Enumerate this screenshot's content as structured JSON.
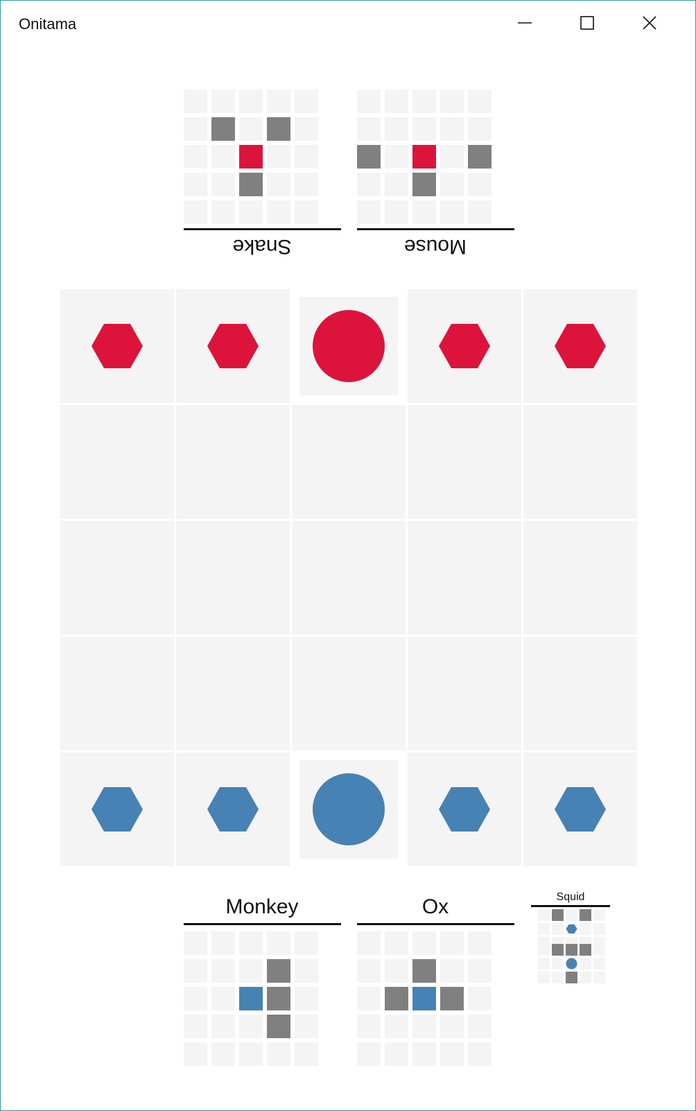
{
  "window": {
    "title": "Onitama",
    "controls": [
      "minimize-icon",
      "maximize-icon",
      "close-icon"
    ]
  },
  "colors": {
    "red": "#dc143c",
    "blue": "#4682b4",
    "move": "#808080",
    "empty": "#f4f4f4"
  },
  "opponent_cards": [
    {
      "name": "Snake",
      "moves": [
        [
          1,
          1
        ],
        [
          1,
          3
        ],
        [
          3,
          2
        ]
      ],
      "origin": [
        2,
        2
      ],
      "origin_color": "red"
    },
    {
      "name": "Mouse",
      "moves": [
        [
          2,
          0
        ],
        [
          2,
          4
        ],
        [
          3,
          2
        ]
      ],
      "origin": [
        2,
        2
      ],
      "origin_color": "red"
    }
  ],
  "player_cards": [
    {
      "name": "Monkey",
      "moves": [
        [
          1,
          3
        ],
        [
          2,
          3
        ],
        [
          3,
          3
        ]
      ],
      "origin": [
        2,
        2
      ],
      "origin_color": "blue"
    },
    {
      "name": "Ox",
      "moves": [
        [
          1,
          2
        ],
        [
          2,
          1
        ],
        [
          2,
          3
        ]
      ],
      "origin": [
        2,
        2
      ],
      "origin_color": "blue"
    }
  ],
  "next_card": {
    "name": "Squid",
    "top_grid": {
      "moves": [
        [
          0,
          1
        ],
        [
          0,
          3
        ]
      ],
      "piece": [
        1,
        2
      ],
      "piece_shape": "hexagon"
    },
    "bottom_grid": {
      "moves": [
        [
          0,
          1
        ],
        [
          0,
          2
        ],
        [
          0,
          3
        ],
        [
          2,
          2
        ]
      ],
      "piece": [
        1,
        2
      ],
      "piece_shape": "circle"
    }
  },
  "board": {
    "rows": 5,
    "cols": 5,
    "pieces": [
      {
        "row": 0,
        "col": 0,
        "type": "student",
        "color": "red"
      },
      {
        "row": 0,
        "col": 1,
        "type": "student",
        "color": "red"
      },
      {
        "row": 0,
        "col": 2,
        "type": "master",
        "color": "red"
      },
      {
        "row": 0,
        "col": 3,
        "type": "student",
        "color": "red"
      },
      {
        "row": 0,
        "col": 4,
        "type": "student",
        "color": "red"
      },
      {
        "row": 4,
        "col": 0,
        "type": "student",
        "color": "blue"
      },
      {
        "row": 4,
        "col": 1,
        "type": "student",
        "color": "blue"
      },
      {
        "row": 4,
        "col": 2,
        "type": "master",
        "color": "blue"
      },
      {
        "row": 4,
        "col": 3,
        "type": "student",
        "color": "blue"
      },
      {
        "row": 4,
        "col": 4,
        "type": "student",
        "color": "blue"
      }
    ]
  }
}
